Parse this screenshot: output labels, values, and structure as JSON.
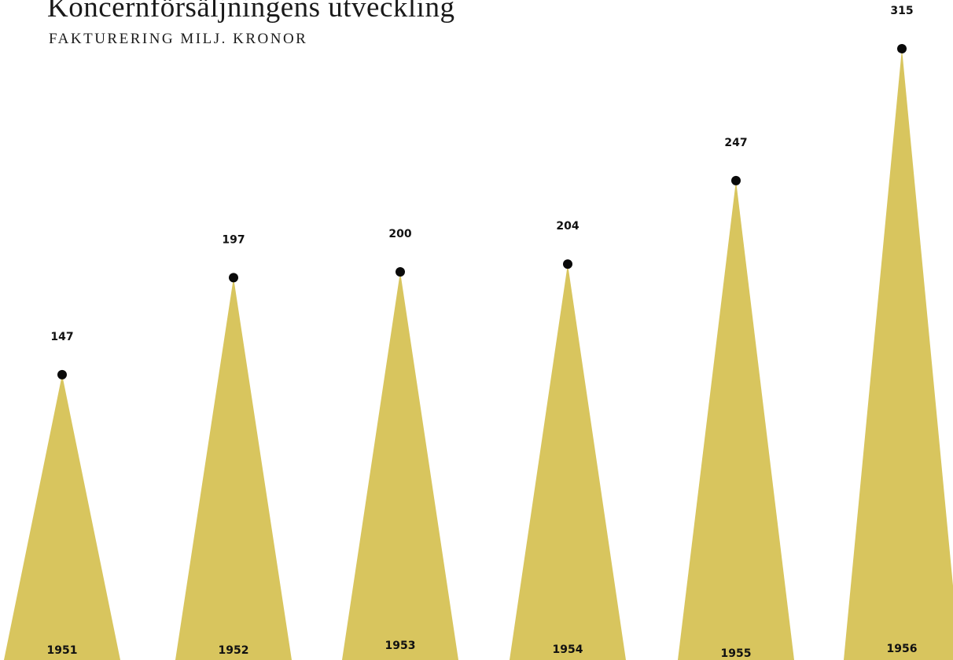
{
  "header": {
    "title": "Koncernförsäljningens utveckling",
    "subtitle": "FAKTURERING MILJ. KRONOR"
  },
  "colors": {
    "background": "#ffffff",
    "spike_fill": "#d8c55e",
    "dot": "#0a0a0a",
    "text": "#111111"
  },
  "chart_data": {
    "type": "bar",
    "title": "Koncernförsäljningens utveckling",
    "subtitle": "FAKTURERING MILJ. KRONOR",
    "xlabel": "",
    "ylabel": "",
    "categories": [
      "1951",
      "1952",
      "1953",
      "1954",
      "1955",
      "1956"
    ],
    "series": [
      {
        "values": [
          147,
          197,
          200,
          204,
          247,
          315
        ]
      }
    ],
    "ylim": [
      0,
      315
    ],
    "grid": false,
    "legend": "none"
  }
}
